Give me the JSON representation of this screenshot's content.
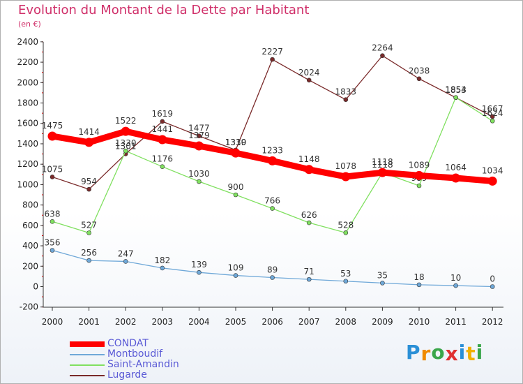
{
  "chart_data": {
    "type": "line",
    "title": "Evolution du Montant de la Dette par Habitant",
    "subtitle": "(en €)",
    "categories": [
      "2000",
      "2001",
      "2002",
      "2003",
      "2004",
      "2005",
      "2006",
      "2007",
      "2008",
      "2009",
      "2010",
      "2011",
      "2012"
    ],
    "y_ticks": [
      "-200",
      "0",
      "200",
      "400",
      "600",
      "800",
      "1000",
      "1200",
      "1400",
      "1600",
      "1800",
      "2000",
      "2200",
      "2400"
    ],
    "ylim": [
      -200,
      2400
    ],
    "grid": false,
    "legend_position": "bottom-left",
    "series": [
      {
        "name": "Lugarde",
        "color": "#7a2a2a",
        "values": [
          1075,
          954,
          1301,
          1619,
          1477,
          1339,
          2227,
          2024,
          1833,
          2264,
          2038,
          1853,
          1667
        ]
      },
      {
        "name": "Saint-Amandin",
        "color": "#80e060",
        "values": [
          638,
          527,
          1330,
          1176,
          1030,
          900,
          766,
          626,
          528,
          1118,
          989,
          1854,
          1624
        ]
      },
      {
        "name": "Montboudif",
        "color": "#6fa8d8",
        "values": [
          356,
          256,
          247,
          182,
          139,
          109,
          89,
          71,
          53,
          35,
          18,
          10,
          0
        ]
      },
      {
        "name": "CONDAT",
        "color": "#ff0000",
        "values": [
          1475,
          1414,
          1522,
          1441,
          1379,
          1310,
          1233,
          1148,
          1078,
          1118,
          1089,
          1064,
          1034
        ]
      }
    ]
  },
  "legend": {
    "items": [
      {
        "label": "CONDAT",
        "color": "#ff0000"
      },
      {
        "label": "Montboudif",
        "color": "#6fa8d8"
      },
      {
        "label": "Saint-Amandin",
        "color": "#80e060"
      },
      {
        "label": "Lugarde",
        "color": "#7a2a2a"
      }
    ]
  },
  "logo": {
    "text": "Proxiti",
    "letters": [
      {
        "ch": "P",
        "color": "#2a8fd6"
      },
      {
        "ch": "r",
        "color": "#f08a00"
      },
      {
        "ch": "o",
        "color": "#3aa64a"
      },
      {
        "ch": "x",
        "color": "#e03030"
      },
      {
        "ch": "i",
        "color": "#2a8fd6"
      },
      {
        "ch": "t",
        "color": "#f0b000"
      },
      {
        "ch": "i",
        "color": "#3aa64a"
      }
    ]
  }
}
